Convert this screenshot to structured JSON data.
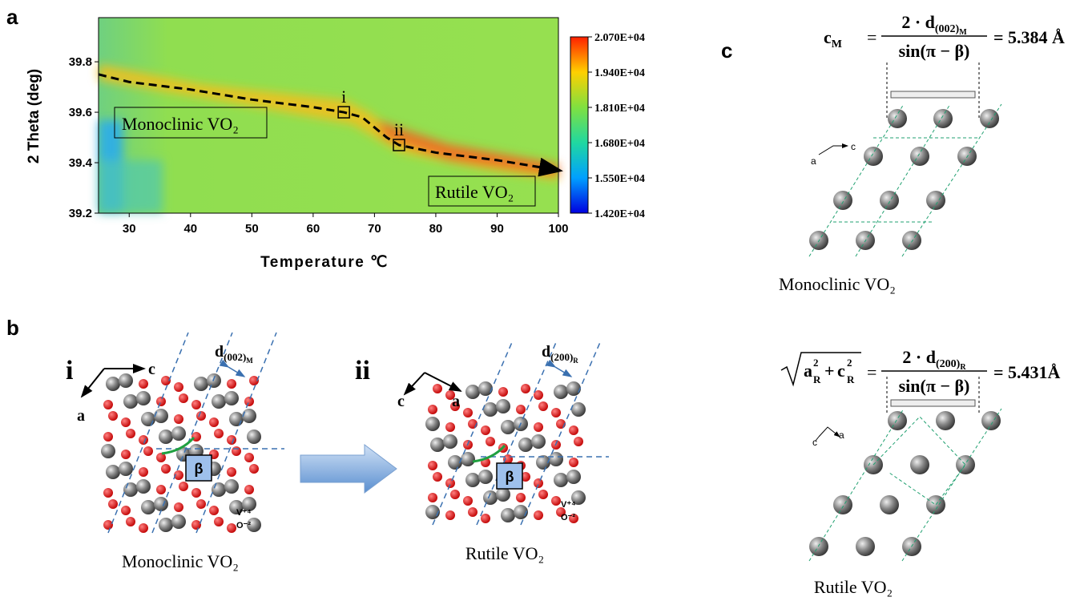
{
  "panel_labels": [
    "a",
    "b",
    "c"
  ],
  "chart_data": {
    "type": "heatmap-line",
    "y_label": "2 Theta (deg)",
    "x_label": "Temperature ℃",
    "xlim": [
      25,
      100
    ],
    "xticks": [
      30,
      40,
      50,
      60,
      70,
      80,
      90,
      100
    ],
    "ylim": [
      39.2,
      39.975
    ],
    "yticks": [
      39.2,
      39.4,
      39.6,
      39.8
    ],
    "x": [
      25,
      30,
      40,
      50,
      60,
      65,
      68,
      70,
      72,
      74,
      80,
      90,
      100
    ],
    "values": [
      39.75,
      39.72,
      39.69,
      39.65,
      39.62,
      39.6,
      39.58,
      39.54,
      39.5,
      39.47,
      39.44,
      39.41,
      39.37
    ],
    "color": "#000000",
    "annotations": [
      "i",
      "ii",
      "Monoclinic VO₂",
      "Rutile VO₂"
    ],
    "colorbar": {
      "clim": [
        14200,
        20700
      ],
      "ticks": [
        {
          "value": 20700,
          "label": "2.070E+04"
        },
        {
          "value": 19400,
          "label": "1.940E+04"
        },
        {
          "value": 18100,
          "label": "1.810E+04"
        },
        {
          "value": 16800,
          "label": "1.680E+04"
        },
        {
          "value": 15500,
          "label": "1.550E+04"
        },
        {
          "value": 14200,
          "label": "1.420E+04"
        }
      ]
    }
  },
  "panel_b": {
    "left": {
      "roman": "i",
      "axis_c": "c",
      "axis_a": "a",
      "d": "d",
      "d_sub": "(002)",
      "d_subsub": "M",
      "beta": "β",
      "legend": [
        "V⁺⁴",
        "O⁻²"
      ],
      "caption": "Monoclinic VO₂"
    },
    "right": {
      "roman": "ii",
      "axis_c": "c",
      "axis_a": "a",
      "d": "d",
      "d_sub": "(200)",
      "d_subsub": "R",
      "beta": "β",
      "legend": [
        "V⁺⁴",
        "O⁻²"
      ],
      "caption": "Rutile VO₂"
    }
  },
  "panel_c": {
    "top": {
      "lhs": "c",
      "lhs_sub": "M",
      "eq": "=",
      "num": "2 · d",
      "num_sub": "(002)",
      "num_subsub": "M",
      "den": "sin(π − β)",
      "result": "= 5.384 Å",
      "axis_c": "c",
      "axis_a": "a",
      "caption": "Monoclinic VO₂"
    },
    "bottom": {
      "t1": "a",
      "t1_sup": "2",
      "t1_sub": "R",
      "op": "+",
      "t2": "c",
      "t2_sup": "2",
      "t2_sub": "R",
      "eq": "=",
      "num": "2 · d",
      "num_sub": "(200)",
      "num_subsub": "R",
      "den": "sin(π − β)",
      "result": "= 5.431Å",
      "axis_c": "c",
      "axis_a": "a",
      "caption": "Rutile VO₂"
    }
  }
}
